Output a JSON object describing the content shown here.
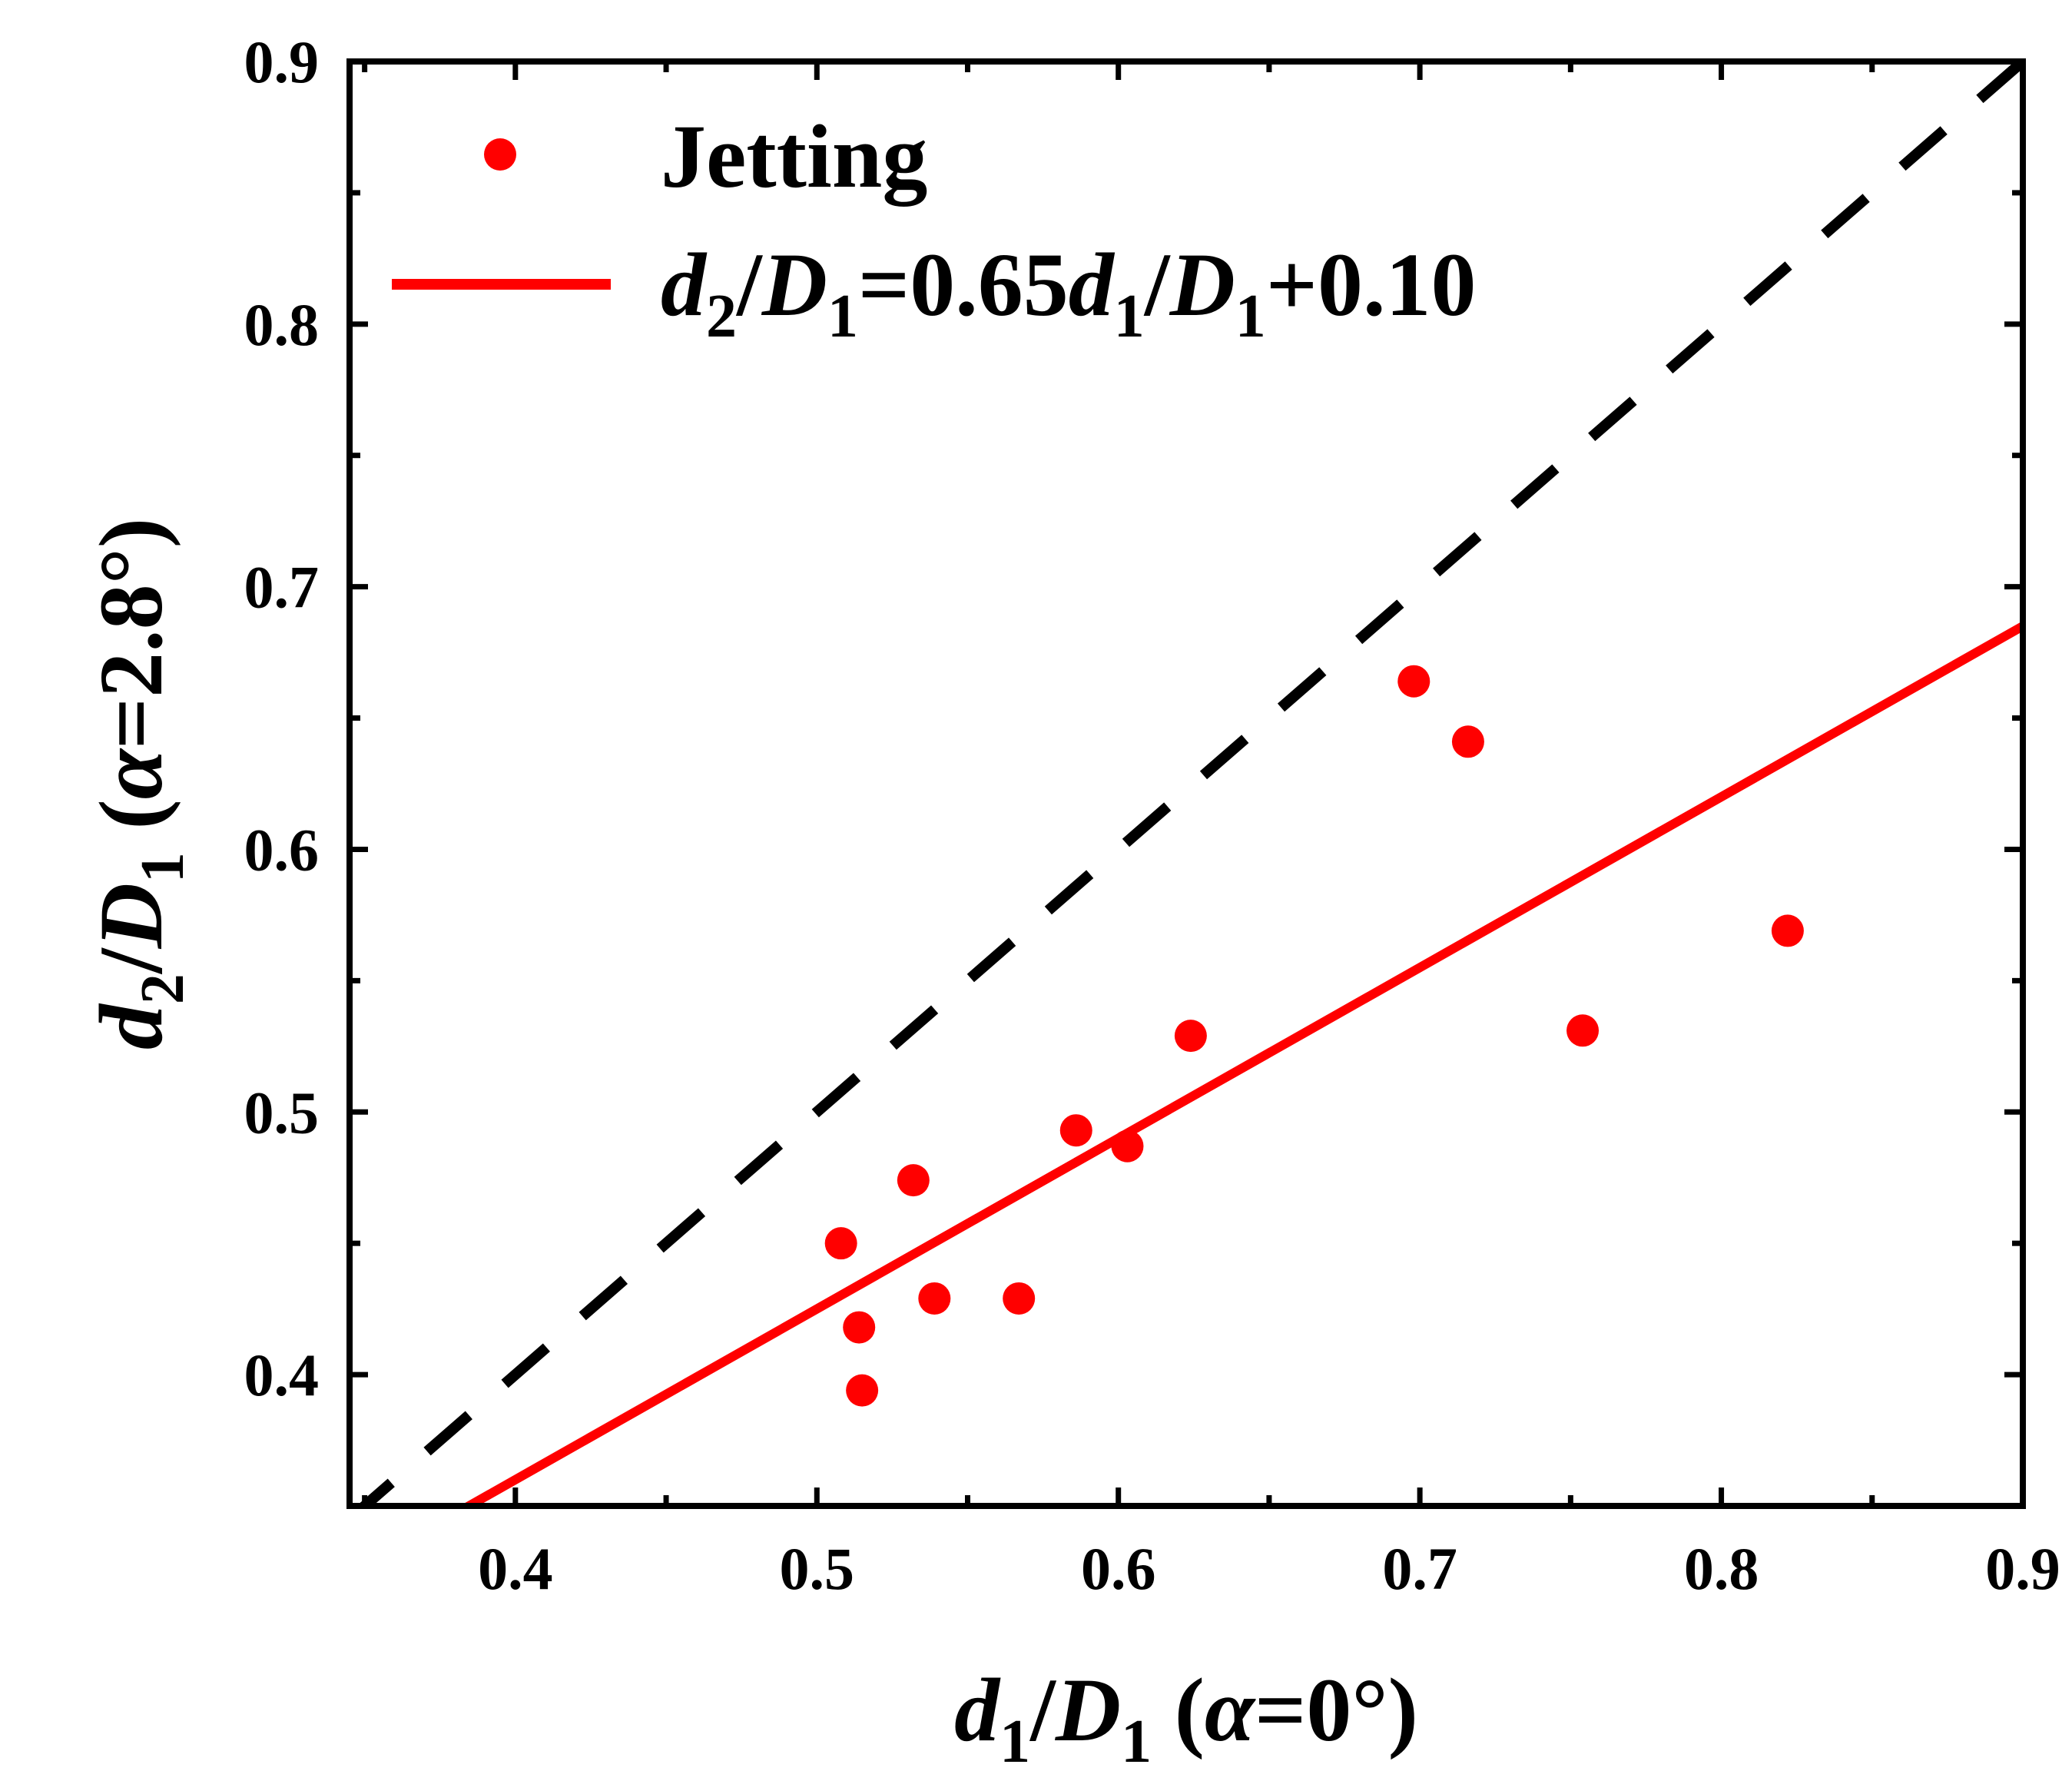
{
  "chart_data": {
    "type": "scatter",
    "title": "",
    "xlabel": {
      "parts": [
        {
          "text": "d",
          "style": "italic"
        },
        {
          "text": "1",
          "style": "sub"
        },
        {
          "text": "/",
          "style": "normal"
        },
        {
          "text": "D",
          "style": "italic"
        },
        {
          "text": "1",
          "style": "sub"
        },
        {
          "text": " (",
          "style": "normal"
        },
        {
          "text": "α",
          "style": "italic"
        },
        {
          "text": "=0°)",
          "style": "normal"
        }
      ]
    },
    "ylabel": {
      "parts": [
        {
          "text": "d",
          "style": "italic"
        },
        {
          "text": "2",
          "style": "sub"
        },
        {
          "text": "/",
          "style": "normal"
        },
        {
          "text": "D",
          "style": "italic"
        },
        {
          "text": "1",
          "style": "sub"
        },
        {
          "text": " (",
          "style": "normal"
        },
        {
          "text": "α",
          "style": "italic"
        },
        {
          "text": "=2.8°)",
          "style": "normal"
        }
      ]
    },
    "xlim": [
      0.345,
      0.9
    ],
    "ylim": [
      0.35,
      0.9
    ],
    "x_ticks": [
      {
        "value": 0.4,
        "label": "0.4"
      },
      {
        "value": 0.5,
        "label": "0.5"
      },
      {
        "value": 0.6,
        "label": "0.6"
      },
      {
        "value": 0.7,
        "label": "0.7"
      },
      {
        "value": 0.8,
        "label": "0.8"
      },
      {
        "value": 0.9,
        "label": "0.9"
      }
    ],
    "x_minor_ticks": [
      0.35,
      0.45,
      0.55,
      0.65,
      0.75,
      0.85
    ],
    "y_ticks": [
      {
        "value": 0.4,
        "label": "0.4"
      },
      {
        "value": 0.5,
        "label": "0.5"
      },
      {
        "value": 0.6,
        "label": "0.6"
      },
      {
        "value": 0.7,
        "label": "0.7"
      },
      {
        "value": 0.8,
        "label": "0.8"
      },
      {
        "value": 0.9,
        "label": "0.9"
      }
    ],
    "y_minor_ticks": [
      0.45,
      0.55,
      0.65,
      0.75,
      0.85
    ],
    "grid": false,
    "series": [
      {
        "name": "Jetting",
        "kind": "scatter",
        "color": "#ff0000",
        "points": [
          {
            "x": 0.508,
            "y": 0.45
          },
          {
            "x": 0.514,
            "y": 0.418
          },
          {
            "x": 0.515,
            "y": 0.394
          },
          {
            "x": 0.532,
            "y": 0.474
          },
          {
            "x": 0.539,
            "y": 0.429
          },
          {
            "x": 0.567,
            "y": 0.429
          },
          {
            "x": 0.586,
            "y": 0.493
          },
          {
            "x": 0.603,
            "y": 0.487
          },
          {
            "x": 0.624,
            "y": 0.529
          },
          {
            "x": 0.698,
            "y": 0.664
          },
          {
            "x": 0.716,
            "y": 0.641
          },
          {
            "x": 0.754,
            "y": 0.531
          },
          {
            "x": 0.822,
            "y": 0.569
          }
        ]
      },
      {
        "name": "fit",
        "kind": "line",
        "color": "#ff0000",
        "slope": 0.65,
        "intercept": 0.1,
        "x_range": [
          0.345,
          0.9
        ]
      },
      {
        "name": "y = x",
        "kind": "dashed-line",
        "color": "#000000",
        "points": [
          {
            "x": 0.345,
            "y": 0.345
          },
          {
            "x": 0.9,
            "y": 0.9
          }
        ]
      }
    ],
    "legend": {
      "position": "top-left",
      "entries": [
        {
          "series": "Jetting",
          "marker": "circle",
          "parts": [
            {
              "text": "Jetting",
              "style": "normal"
            }
          ]
        },
        {
          "series": "fit",
          "marker": "line",
          "parts": [
            {
              "text": "d",
              "style": "italic"
            },
            {
              "text": "2",
              "style": "sub"
            },
            {
              "text": "/",
              "style": "normal"
            },
            {
              "text": "D",
              "style": "italic"
            },
            {
              "text": "1",
              "style": "sub"
            },
            {
              "text": "=0.65",
              "style": "normal"
            },
            {
              "text": "d",
              "style": "italic"
            },
            {
              "text": "1",
              "style": "sub"
            },
            {
              "text": "/",
              "style": "normal"
            },
            {
              "text": "D",
              "style": "italic"
            },
            {
              "text": "1",
              "style": "sub"
            },
            {
              "text": "+0.10",
              "style": "normal"
            }
          ]
        }
      ]
    }
  }
}
